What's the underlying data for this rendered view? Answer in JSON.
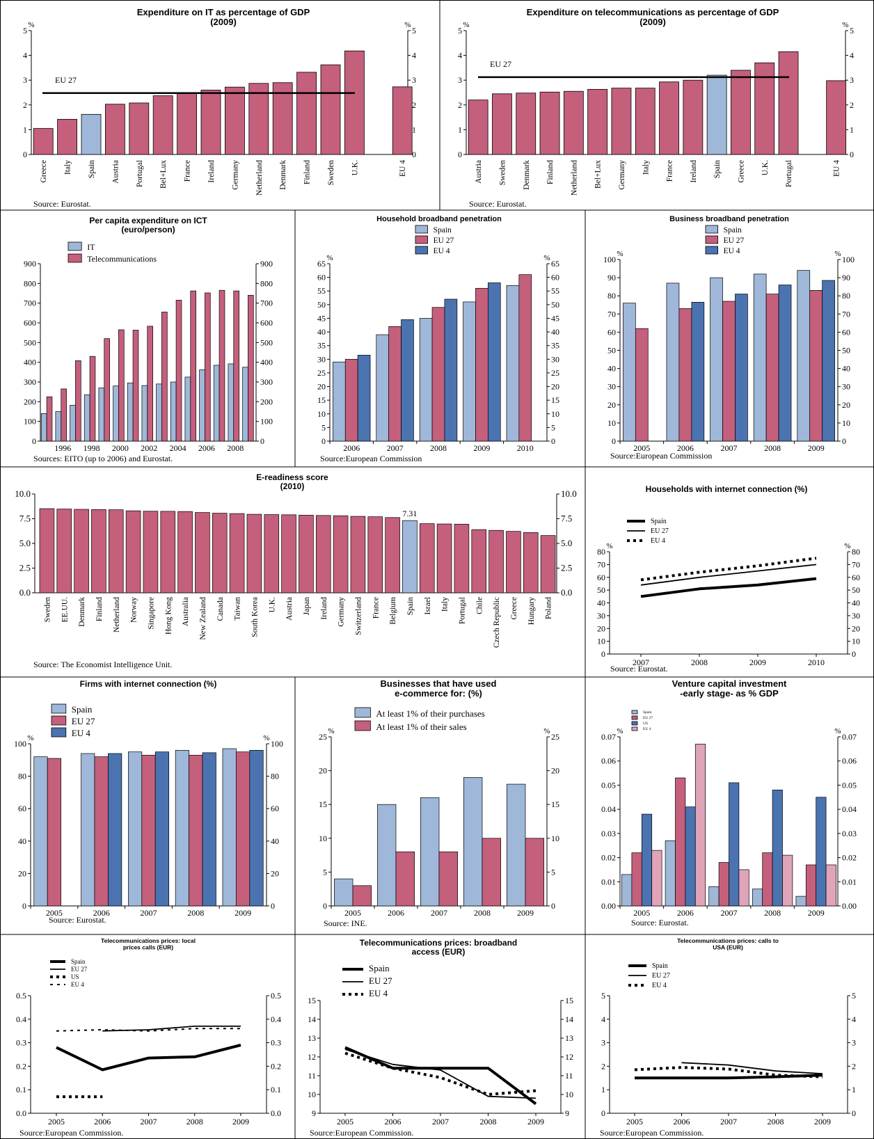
{
  "colors": {
    "pink": "#c45f7c",
    "blue_light": "#9fb7d8",
    "blue_dark": "#4a73b0",
    "pink_light": "#e0a4b8",
    "line": "#000000"
  },
  "chart_data": [
    {
      "id": "it_gdp",
      "type": "bar",
      "title": "Expenditure on IT as percentage of GDP",
      "subtitle": "(2009)",
      "unit_left": "%",
      "unit_right": "%",
      "categories": [
        "Greece",
        "Italy",
        "Spain",
        "Austria",
        "Portugal",
        "Bel+Lux",
        "France",
        "Ireland",
        "Germany",
        "Netherland",
        "Denmark",
        "Finland",
        "Sweden",
        "U.K.",
        "",
        "EU 4"
      ],
      "values": [
        1.05,
        1.42,
        1.62,
        2.03,
        2.08,
        2.37,
        2.5,
        2.6,
        2.72,
        2.87,
        2.9,
        3.32,
        3.62,
        4.18,
        null,
        2.73
      ],
      "highlight": "Spain",
      "reference": {
        "label": "EU 27",
        "value": 2.48
      },
      "ylim": [
        0,
        5
      ],
      "yticks": [
        0,
        1,
        2,
        3,
        4,
        5
      ],
      "source": "Source: Eurostat."
    },
    {
      "id": "tel_gdp",
      "type": "bar",
      "title": "Expenditure on telecommunications as percentage of GDP",
      "subtitle": "(2009)",
      "unit_left": "%",
      "unit_right": "%",
      "categories": [
        "Austria",
        "Sweden",
        "Denmark",
        "Finland",
        "Netherland",
        "Bel+Lux",
        "Germany",
        "Italy",
        "France",
        "Ireland",
        "Spain",
        "Greece",
        "U.K.",
        "Portugal",
        "",
        "EU 4"
      ],
      "values": [
        2.2,
        2.45,
        2.48,
        2.52,
        2.55,
        2.63,
        2.68,
        2.68,
        2.93,
        3.0,
        3.2,
        3.4,
        3.7,
        4.15,
        null,
        2.98
      ],
      "highlight": "Spain",
      "reference": {
        "label": "EU 27",
        "value": 3.12
      },
      "ylim": [
        0,
        5
      ],
      "yticks": [
        0,
        1,
        2,
        3,
        4,
        5
      ],
      "source": "Source: Eurostat."
    },
    {
      "id": "ict_capita",
      "type": "bar",
      "title": "Per capita expenditure on ICT",
      "subtitle": "(euro/person)",
      "series": [
        {
          "name": "IT",
          "values": [
            140,
            150,
            182,
            235,
            270,
            280,
            295,
            282,
            290,
            300,
            325,
            362,
            385,
            392,
            375
          ]
        },
        {
          "name": "Telecommunications",
          "values": [
            225,
            265,
            408,
            430,
            520,
            565,
            563,
            583,
            655,
            715,
            762,
            752,
            765,
            762,
            740
          ]
        }
      ],
      "x": [
        1995,
        1996,
        1997,
        1998,
        1999,
        2000,
        2001,
        2002,
        2003,
        2004,
        2005,
        2006,
        2007,
        2008,
        2009
      ],
      "xtick_labels": [
        "1996",
        "1998",
        "2000",
        "2002",
        "2004",
        "2006",
        "2008"
      ],
      "ylim": [
        0,
        900
      ],
      "yticks": [
        0,
        100,
        200,
        300,
        400,
        500,
        600,
        700,
        800,
        900
      ],
      "source": "Sources: EITO (up to 2006) and Eurostat."
    },
    {
      "id": "hh_broadband",
      "type": "bar",
      "title": "Household broadband penetration",
      "unit_left": "%",
      "unit_right": "%",
      "categories": [
        "2006",
        "2007",
        "2008",
        "2009",
        "2010"
      ],
      "series": [
        {
          "name": "Spain",
          "values": [
            29,
            39,
            45,
            51,
            57
          ]
        },
        {
          "name": "EU 27",
          "values": [
            30,
            42,
            49,
            56,
            61
          ]
        },
        {
          "name": "EU 4",
          "values": [
            31.5,
            44.5,
            52,
            58,
            null
          ]
        }
      ],
      "ylim": [
        0,
        65
      ],
      "yticks": [
        0,
        5,
        10,
        15,
        20,
        25,
        30,
        35,
        40,
        45,
        50,
        55,
        60,
        65
      ],
      "source": "Source:European Commission"
    },
    {
      "id": "biz_broadband",
      "type": "bar",
      "title": "Business broadband penetration",
      "unit_left": "%",
      "unit_right": "%",
      "categories": [
        "2005",
        "2006",
        "2007",
        "2008",
        "2009"
      ],
      "series": [
        {
          "name": "Spain",
          "values": [
            76,
            87,
            90,
            92,
            94
          ]
        },
        {
          "name": "EU 27",
          "values": [
            62,
            73,
            77,
            81,
            83
          ]
        },
        {
          "name": "EU 4",
          "values": [
            null,
            76.5,
            81,
            86,
            88.5
          ]
        }
      ],
      "ylim": [
        0,
        100
      ],
      "yticks": [
        0,
        10,
        20,
        30,
        40,
        50,
        60,
        70,
        80,
        90,
        100
      ],
      "source": "Source:European Commission"
    },
    {
      "id": "ereadiness",
      "type": "bar",
      "title": "E-readiness score",
      "subtitle": "(2010)",
      "categories": [
        "Sweden",
        "EE.UU.",
        "Denmark",
        "Finland",
        "Netherland",
        "Norway",
        "Singapore",
        "Hong Kong",
        "Australia",
        "New Zealand",
        "Canada",
        "Taiwan",
        "South Korea",
        "U.K.",
        "Austria",
        "Japan",
        "Ireland",
        "Germany",
        "Switzerland",
        "France",
        "Belgium",
        "Spain",
        "Israel",
        "Italy",
        "Portugal",
        "Chile",
        "Czech Republic",
        "Greece",
        "Hungary",
        "Poland"
      ],
      "values": [
        8.52,
        8.48,
        8.45,
        8.43,
        8.41,
        8.3,
        8.26,
        8.25,
        8.23,
        8.13,
        8.06,
        8.02,
        7.95,
        7.92,
        7.9,
        7.86,
        7.83,
        7.8,
        7.74,
        7.7,
        7.62,
        7.31,
        7.0,
        6.97,
        6.95,
        6.4,
        6.32,
        6.22,
        6.1,
        5.8
      ],
      "highlight": "Spain",
      "annotation": "7.31",
      "ylim": [
        0,
        10
      ],
      "yticks": [
        "0.0",
        "2.5",
        "5.0",
        "7.5",
        "10.0"
      ],
      "source": "Source: The Economist Intelligence Unit."
    },
    {
      "id": "hh_internet",
      "type": "line",
      "title": "Households with internet connection (%)",
      "unit_left": "%",
      "unit_right": "%",
      "x": [
        "2007",
        "2008",
        "2009",
        "2010"
      ],
      "series": [
        {
          "name": "Spain",
          "values": [
            45,
            51,
            54,
            59
          ],
          "style": "thick"
        },
        {
          "name": "EU 27",
          "values": [
            54,
            60,
            65,
            70
          ],
          "style": "solid"
        },
        {
          "name": "EU 4",
          "values": [
            58,
            64,
            69,
            75
          ],
          "style": "dotted"
        }
      ],
      "ylim": [
        0,
        80
      ],
      "yticks": [
        0,
        10,
        20,
        30,
        40,
        50,
        60,
        70,
        80
      ],
      "source": "Source: Eurostat."
    },
    {
      "id": "firms_internet",
      "type": "bar",
      "title": "Firms with internet connection (%)",
      "unit_left": "%",
      "unit_right": "%",
      "categories": [
        "2005",
        "2006",
        "2007",
        "2008",
        "2009"
      ],
      "series": [
        {
          "name": "Spain",
          "values": [
            92,
            94,
            95,
            96,
            97
          ]
        },
        {
          "name": "EU 27",
          "values": [
            91,
            92,
            93,
            93,
            95
          ]
        },
        {
          "name": "EU 4",
          "values": [
            null,
            94,
            95,
            94.5,
            96
          ]
        }
      ],
      "ylim": [
        0,
        100
      ],
      "yticks": [
        0,
        20,
        40,
        60,
        80,
        100
      ],
      "source": "Source: Eurostat."
    },
    {
      "id": "ecommerce",
      "type": "bar",
      "title": "Businesses that have used",
      "subtitle": "e-commerce for: (%)",
      "unit_left": "%",
      "unit_right": "%",
      "categories": [
        "2005",
        "2006",
        "2007",
        "2008",
        "2009"
      ],
      "series": [
        {
          "name": "At least 1% of their purchases",
          "values": [
            4,
            15,
            16,
            19,
            18
          ]
        },
        {
          "name": "At least 1% of their sales",
          "values": [
            3,
            8,
            8,
            10,
            10
          ]
        }
      ],
      "ylim": [
        0,
        25
      ],
      "yticks": [
        0,
        5,
        10,
        15,
        20,
        25
      ],
      "source": "Source: INE."
    },
    {
      "id": "venture",
      "type": "bar",
      "title": "Venture capital investment",
      "subtitle": "-early stage- as % GDP",
      "unit_left": "%",
      "unit_right": "%",
      "categories": [
        "2005",
        "2006",
        "2007",
        "2008",
        "2009"
      ],
      "series": [
        {
          "name": "Spain",
          "values": [
            0.013,
            0.027,
            0.008,
            0.007,
            0.004
          ]
        },
        {
          "name": "EU 27",
          "values": [
            0.022,
            0.053,
            0.018,
            0.022,
            0.017
          ]
        },
        {
          "name": "US",
          "values": [
            0.038,
            0.041,
            0.051,
            0.048,
            0.045
          ]
        },
        {
          "name": "EU 4",
          "values": [
            0.023,
            0.067,
            0.015,
            0.021,
            0.017
          ]
        }
      ],
      "ylim": [
        0,
        0.07
      ],
      "yticks": [
        "0.00",
        "0.01",
        "0.02",
        "0.03",
        "0.04",
        "0.05",
        "0.06",
        "0.07"
      ],
      "source": "Source: Eurostat."
    },
    {
      "id": "tel_local",
      "type": "line",
      "title": "Telecommunications prices: local",
      "subtitle": "prices calls (EUR)",
      "x": [
        "2005",
        "2006",
        "2007",
        "2008",
        "2009"
      ],
      "series": [
        {
          "name": "Spain",
          "values": [
            0.28,
            0.185,
            0.235,
            0.24,
            0.29
          ],
          "style": "thick"
        },
        {
          "name": "EU 27",
          "values": [
            null,
            0.35,
            0.355,
            0.37,
            0.37
          ],
          "style": "solid"
        },
        {
          "name": "US",
          "values": [
            0.07,
            0.07,
            null,
            null,
            null
          ],
          "style": "dotted"
        },
        {
          "name": "EU 4",
          "values": [
            0.35,
            0.355,
            0.35,
            0.36,
            0.36
          ],
          "style": "dashed"
        }
      ],
      "ylim": [
        0,
        0.5
      ],
      "yticks": [
        "0.0",
        "0.1",
        "0.2",
        "0.3",
        "0.4",
        "0.5"
      ],
      "source": "Source:European Commission."
    },
    {
      "id": "tel_broadband",
      "type": "line",
      "title": "Telecommunications prices: broadband",
      "subtitle": "access (EUR)",
      "x": [
        "2005",
        "2006",
        "2007",
        "2008",
        "2009"
      ],
      "series": [
        {
          "name": "Spain",
          "values": [
            12.5,
            11.4,
            11.4,
            11.4,
            9.5
          ],
          "style": "thick"
        },
        {
          "name": "EU 27",
          "values": [
            12.4,
            11.6,
            11.3,
            9.9,
            9.8
          ],
          "style": "solid"
        },
        {
          "name": "EU 4",
          "values": [
            12.2,
            11.4,
            10.9,
            10.0,
            10.2
          ],
          "style": "dotted"
        }
      ],
      "ylim": [
        9,
        15
      ],
      "yticks": [
        "9",
        "10",
        "11",
        "12",
        "13",
        "14",
        "15"
      ],
      "source": "Source:European Commission."
    },
    {
      "id": "tel_usa",
      "type": "line",
      "title": "Telecommunications prices: calls to",
      "subtitle": "USA (EUR)",
      "x": [
        "2005",
        "2006",
        "2007",
        "2008",
        "2009"
      ],
      "series": [
        {
          "name": "Spain",
          "values": [
            1.5,
            1.5,
            1.5,
            1.55,
            1.62
          ],
          "style": "thick"
        },
        {
          "name": "EU 27",
          "values": [
            null,
            2.15,
            2.05,
            1.8,
            1.68
          ],
          "style": "solid"
        },
        {
          "name": "EU 4",
          "values": [
            1.85,
            1.95,
            1.88,
            1.62,
            1.55
          ],
          "style": "dotted"
        }
      ],
      "ylim": [
        0,
        5
      ],
      "yticks": [
        "0",
        "1",
        "2",
        "3",
        "4",
        "5"
      ],
      "source": "Source:European Commission."
    }
  ]
}
